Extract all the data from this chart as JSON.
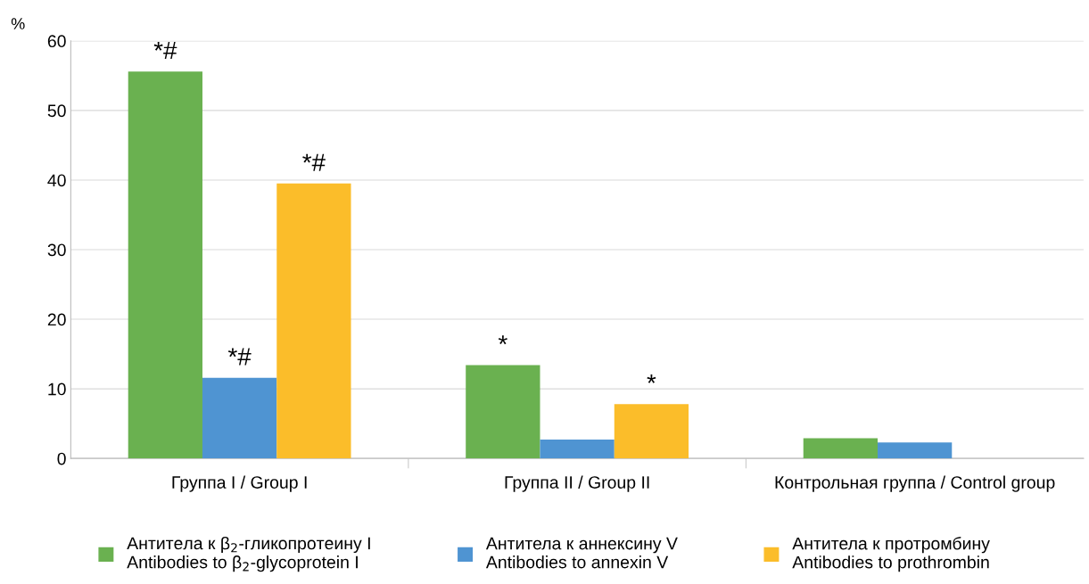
{
  "chart_data": {
    "type": "bar",
    "ylabel": "%",
    "categories": [
      "Группа I / Group I",
      "Группа II / Group II",
      "Контрольная группа / Control group"
    ],
    "series": [
      {
        "name": "Антитела к β$_{2}$-гликопротеину I\nAntibodies to β$_{2}$-glycoprotein I",
        "color": "#6ab150",
        "values": [
          55.6,
          13.4,
          2.9
        ],
        "value_labels": [
          "*#",
          "*",
          null
        ]
      },
      {
        "name": "Антитела к аннексину V\nAntibodies to annexin V",
        "color": "#4f94d2",
        "values": [
          11.6,
          2.7,
          2.3
        ],
        "value_labels": [
          "*#",
          null,
          null
        ]
      },
      {
        "name": "Антитела к протромбину\nAntibodies to prothrombin",
        "color": "#fbbd2a",
        "values": [
          39.5,
          7.8,
          0
        ],
        "value_labels": [
          "*#",
          "*",
          null
        ]
      }
    ],
    "ylim": [
      0,
      60
    ],
    "yticks": [
      0,
      10,
      20,
      30,
      40,
      50,
      60
    ],
    "grid": "y",
    "legend": "bottom"
  }
}
